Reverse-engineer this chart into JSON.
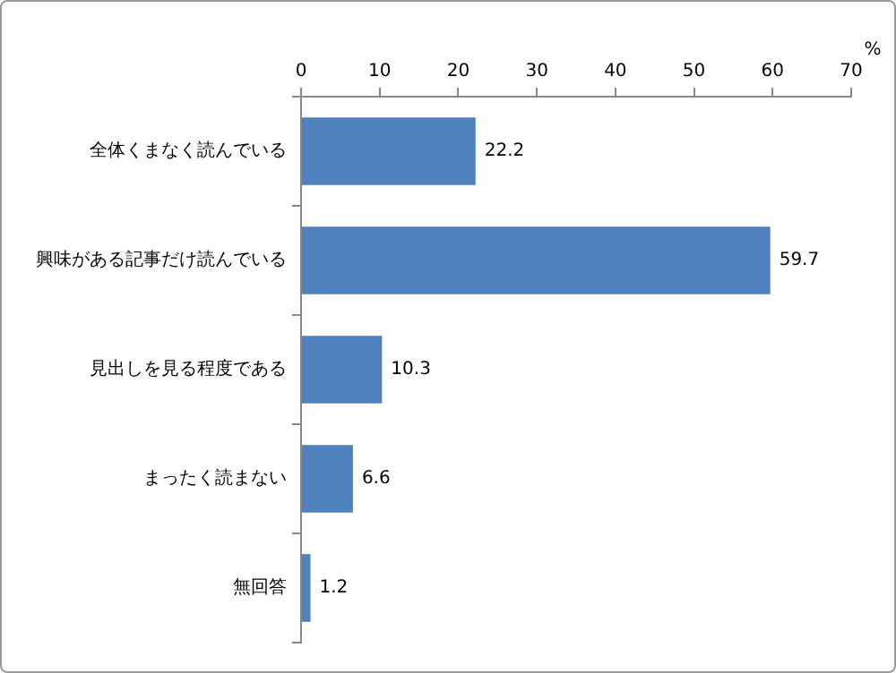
{
  "chart_data": {
    "type": "bar",
    "orientation": "horizontal",
    "categories": [
      "全体くまなく読んでいる",
      "興味がある記事だけ読んでいる",
      "見出しを見る程度である",
      "まったく読まない",
      "無回答"
    ],
    "values": [
      22.2,
      59.7,
      10.3,
      6.6,
      1.2
    ],
    "color": "#4f81bd",
    "xlabel": "%",
    "xlim": [
      0,
      70
    ],
    "xticks": [
      0,
      10,
      20,
      30,
      40,
      50,
      60,
      70
    ],
    "data_labels": true,
    "grid": false,
    "legend": false
  }
}
